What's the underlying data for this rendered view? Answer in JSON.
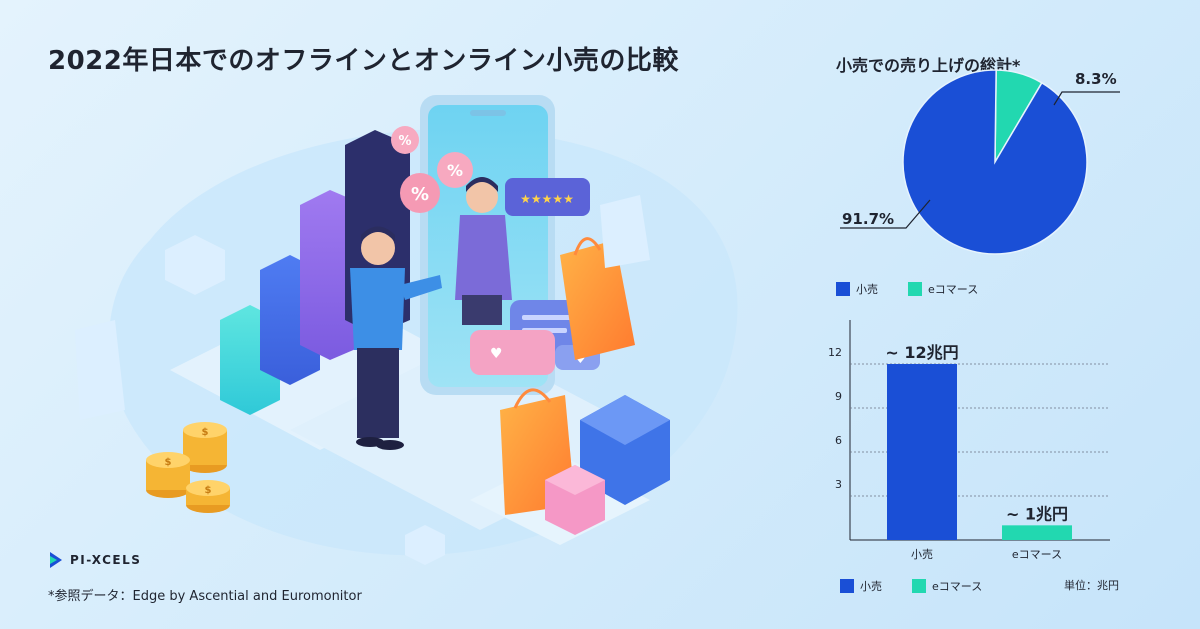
{
  "title": "2022年日本でのオフラインとオンライン小売の比較",
  "logo_text": "PI-XCELS",
  "source": "*参照データ：Edge by Ascential and Euromonitor",
  "colors": {
    "retail": "#1a4fd6",
    "ecommerce": "#22d8b0",
    "text": "#1f2430"
  },
  "illustration": {
    "badge_symbol": "%",
    "review_stars": "★★★★★",
    "coin_symbol": "$",
    "icons": [
      "bar-chart-icon",
      "smartphone-icon",
      "handshake-icon",
      "shopping-bag-icon",
      "gift-box-icon",
      "coin-stack-icon",
      "percent-badge-icon",
      "star-rating-icon",
      "chat-bubble-icon"
    ]
  },
  "chart_data": [
    {
      "type": "pie",
      "title": "小売での売り上げの総計*",
      "slices": [
        {
          "name": "小売",
          "value": 91.7,
          "label": "91.7%",
          "color": "#1a4fd6"
        },
        {
          "name": "eコマース",
          "value": 8.3,
          "label": "8.3%",
          "color": "#22d8b0"
        }
      ],
      "legend": [
        "小売",
        "eコマース"
      ],
      "legend_position": "bottom-left"
    },
    {
      "type": "bar",
      "categories": [
        "小売",
        "eコマース"
      ],
      "values": [
        12,
        1
      ],
      "data_labels": [
        "~ 12兆円",
        "~ 1兆円"
      ],
      "colors": [
        "#1a4fd6",
        "#22d8b0"
      ],
      "yticks": [
        "3",
        "6",
        "9",
        "12"
      ],
      "ylim": [
        0,
        12
      ],
      "unit": "単位：兆円",
      "grid": true,
      "legend": [
        "小売",
        "eコマース"
      ],
      "legend_position": "bottom-left"
    }
  ]
}
